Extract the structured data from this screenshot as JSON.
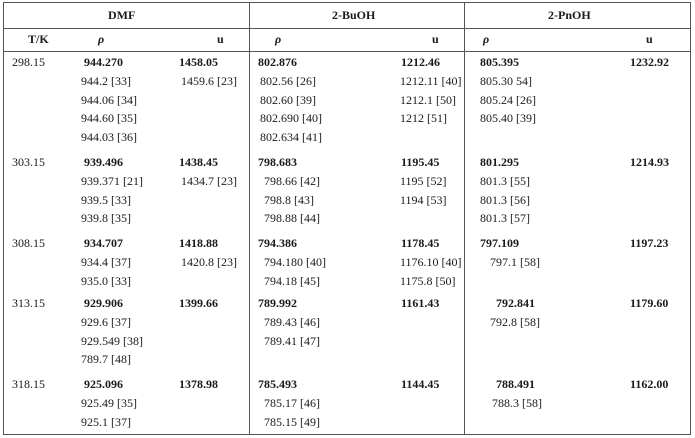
{
  "headers": {
    "group1": "DMF",
    "group2": "2-BuOH",
    "group3": "2-PnOH",
    "temp": "T/K",
    "rho": "ρ",
    "u": "u"
  },
  "rows": [
    {
      "T": "298.15",
      "dmf_rho": [
        "944.270",
        "944.2 [33]",
        "944.06 [34]",
        "944.60 [35]",
        "944.03 [36]"
      ],
      "dmf_u": [
        "1458.05",
        "1459.6 [23]"
      ],
      "buoh_rho": [
        "802.876",
        "802.56 [26]",
        "802.60 [39]",
        "802.690 [40]",
        "802.634 [41]"
      ],
      "buoh_u": [
        "1212.46",
        "1212.11 [40]",
        "1212.1 [50]",
        "1212 [51]"
      ],
      "pnoh_rho": [
        "805.395",
        "805.30 54]",
        "805.24 [26]",
        "805.40 [39]"
      ],
      "pnoh_u": [
        "1232.92"
      ]
    },
    {
      "T": "303.15",
      "dmf_rho": [
        "939.496",
        "939.371 [21]",
        "939.5 [33]",
        "939.8 [35]"
      ],
      "dmf_u": [
        "1438.45",
        "1434.7 [23]"
      ],
      "buoh_rho": [
        "798.683",
        "798.66 [42]",
        "798.8 [43]",
        "798.88 [44]"
      ],
      "buoh_u": [
        "1195.45",
        "1195 [52]",
        "1194 [53]"
      ],
      "pnoh_rho": [
        "801.295",
        "801.3 [55]",
        "801.3 [56]",
        "801.3 [57]"
      ],
      "pnoh_u": [
        "1214.93"
      ]
    },
    {
      "T": "308.15",
      "dmf_rho": [
        "934.707",
        "934.4 [37]",
        "935.0 [33]"
      ],
      "dmf_u": [
        "1418.88",
        "1420.8 [23]"
      ],
      "buoh_rho": [
        "794.386",
        "794.180 [40]",
        "794.18 [45]"
      ],
      "buoh_u": [
        "1178.45",
        "1176.10 [40]",
        "1175.8 [50]"
      ],
      "pnoh_rho": [
        "797.109",
        "797.1 [58]"
      ],
      "pnoh_u": [
        "1197.23"
      ]
    },
    {
      "T": "313.15",
      "dmf_rho": [
        "929.906",
        "929.6 [37]",
        "929.549 [38]",
        "789.7 [48]"
      ],
      "dmf_u": [
        "1399.66"
      ],
      "buoh_rho": [
        "789.992",
        "789.43 [46]",
        "789.41 [47]"
      ],
      "buoh_u": [
        "1161.43"
      ],
      "pnoh_rho": [
        "792.841",
        "792.8 [58]"
      ],
      "pnoh_u": [
        "1179.60"
      ]
    },
    {
      "T": "318.15",
      "dmf_rho": [
        "925.096",
        "925.49 [35]",
        "925.1 [37]"
      ],
      "dmf_u": [
        "1378.98"
      ],
      "buoh_rho": [
        "785.493",
        "785.17 [46]",
        "785.15 [49]"
      ],
      "buoh_u": [
        "1144.45"
      ],
      "pnoh_rho": [
        "788.491",
        "788.3 [58]"
      ],
      "pnoh_u": [
        "1162.00"
      ]
    }
  ]
}
